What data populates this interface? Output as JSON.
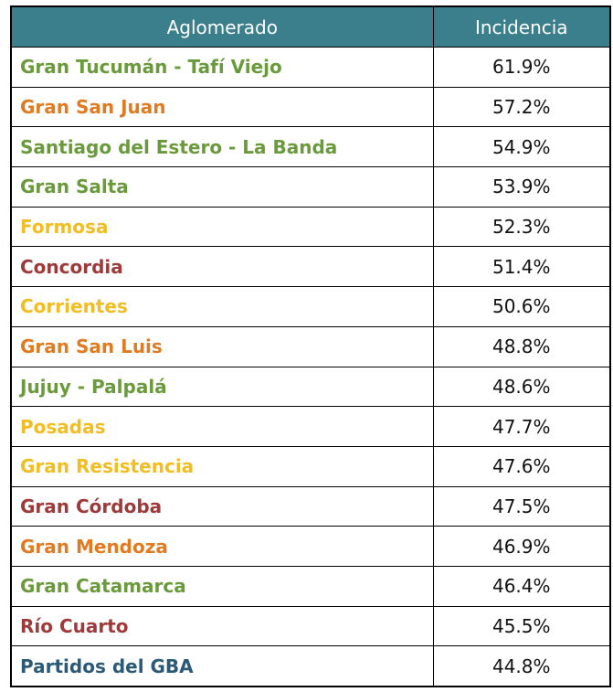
{
  "table": {
    "headers": [
      "Aglomerado",
      "Incidencia"
    ],
    "header_bg": "#3b7f8c",
    "rows": [
      {
        "name": "Gran Tucumán - Tafí Viejo",
        "value": "61.9%",
        "color": "#6a9a3c"
      },
      {
        "name": "Gran San Juan",
        "value": "57.2%",
        "color": "#e07b22"
      },
      {
        "name": "Santiago del Estero - La Banda",
        "value": "54.9%",
        "color": "#6a9a3c"
      },
      {
        "name": "Gran Salta",
        "value": "53.9%",
        "color": "#6a9a3c"
      },
      {
        "name": "Formosa",
        "value": "52.3%",
        "color": "#f2bd22"
      },
      {
        "name": "Concordia",
        "value": "51.4%",
        "color": "#9e3a3a"
      },
      {
        "name": "Corrientes",
        "value": "50.6%",
        "color": "#f2bd22"
      },
      {
        "name": "Gran San Luis",
        "value": "48.8%",
        "color": "#e07b22"
      },
      {
        "name": "Jujuy - Palpalá",
        "value": "48.6%",
        "color": "#6a9a3c"
      },
      {
        "name": "Posadas",
        "value": "47.7%",
        "color": "#f2bd22"
      },
      {
        "name": "Gran Resistencia",
        "value": "47.6%",
        "color": "#f2bd22"
      },
      {
        "name": "Gran Córdoba",
        "value": "47.5%",
        "color": "#9e3a3a"
      },
      {
        "name": "Gran Mendoza",
        "value": "46.9%",
        "color": "#e07b22"
      },
      {
        "name": "Gran Catamarca",
        "value": "46.4%",
        "color": "#6a9a3c"
      },
      {
        "name": "Río Cuarto",
        "value": "45.5%",
        "color": "#9e3a3a"
      },
      {
        "name": "Partidos del GBA",
        "value": "44.8%",
        "color": "#2a5a78"
      }
    ]
  }
}
